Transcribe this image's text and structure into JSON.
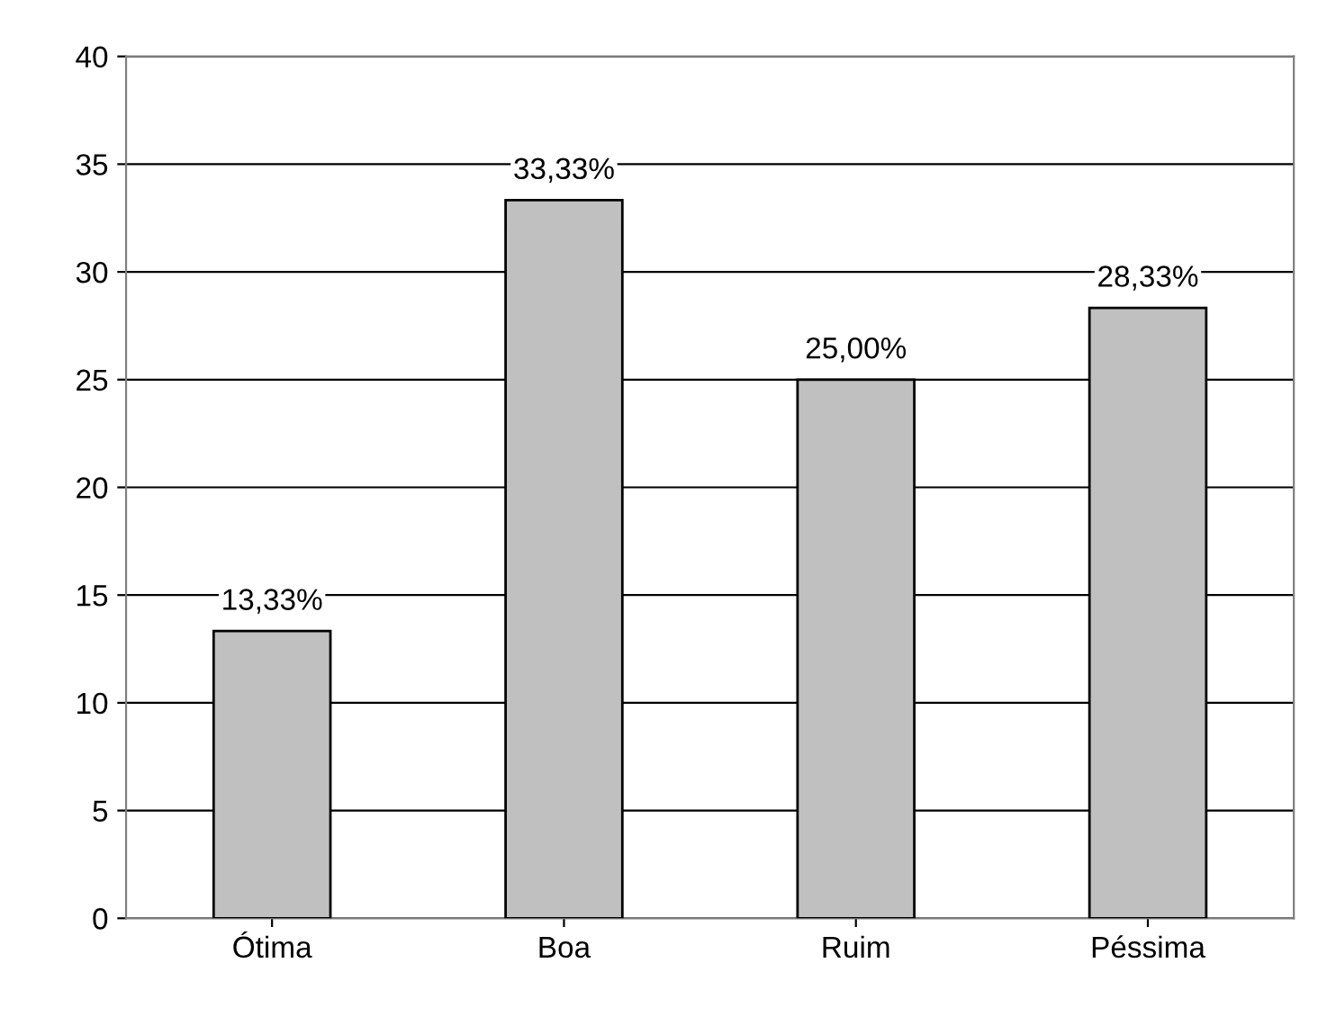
{
  "chart_data": {
    "type": "bar",
    "categories": [
      "Ótima",
      "Boa",
      "Ruim",
      "Péssima"
    ],
    "values": [
      13.33,
      33.33,
      25.0,
      28.33
    ],
    "value_labels": [
      "13,33%",
      "33,33%",
      "25,00%",
      "28,33%"
    ],
    "color": "#c0c0c0",
    "ylim": [
      0,
      40
    ],
    "yticks": [
      0,
      5,
      10,
      15,
      20,
      25,
      30,
      35,
      40
    ],
    "grid": "y",
    "legend": false
  }
}
